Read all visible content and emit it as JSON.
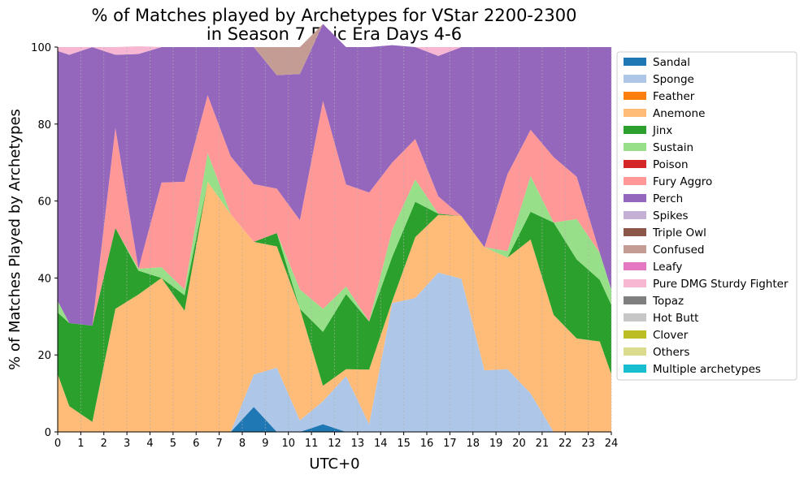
{
  "chart_data": {
    "type": "area",
    "title": "% of Matches played by Archetypes for VStar 2200-2300\nin Season 7 Epic Era Days 4-6",
    "xlabel": "UTC+0",
    "ylabel": "% of Matches Played by Archetypes",
    "xlim": [
      0,
      24
    ],
    "ylim": [
      0,
      100
    ],
    "x": [
      0,
      0.5,
      1.5,
      2.5,
      3.5,
      4.5,
      5.5,
      6.5,
      7.5,
      8.5,
      9.5,
      10.5,
      11.5,
      12.5,
      13.5,
      14.5,
      15.5,
      16.5,
      17.5,
      18.5,
      19.5,
      20.5,
      21.5,
      22.5,
      23.5,
      24
    ],
    "xticks": [
      "0",
      "1",
      "2",
      "3",
      "4",
      "5",
      "6",
      "7",
      "8",
      "9",
      "10",
      "11",
      "12",
      "13",
      "14",
      "15",
      "16",
      "17",
      "18",
      "19",
      "20",
      "21",
      "22",
      "23",
      "24"
    ],
    "yticks": [
      "0",
      "20",
      "40",
      "60",
      "80",
      "100"
    ],
    "stacked": true,
    "grid": "vertical dashed",
    "legend_position": "right",
    "series": [
      {
        "name": "Sandal",
        "color": "#1f77b4",
        "values": [
          0,
          0,
          0,
          0,
          0,
          0,
          0,
          0,
          0,
          6.5,
          0,
          0,
          2,
          0,
          0,
          0,
          0,
          0,
          0,
          0,
          0,
          0,
          0,
          0,
          0,
          0
        ]
      },
      {
        "name": "Sponge",
        "color": "#aec7e8",
        "values": [
          0,
          0,
          0,
          0,
          0,
          0,
          0,
          0,
          0,
          8.4,
          16.7,
          3,
          6,
          14.5,
          2,
          33.5,
          34.8,
          41.4,
          39.8,
          16,
          16.3,
          10,
          0,
          0,
          0,
          0
        ]
      },
      {
        "name": "Feather",
        "color": "#ff7f0e",
        "values": [
          0,
          0,
          0,
          0,
          0,
          0,
          0,
          0,
          0,
          0,
          0,
          0,
          0,
          0,
          0,
          0,
          0,
          0,
          0,
          0,
          0,
          0,
          0,
          0,
          0,
          0
        ]
      },
      {
        "name": "Anemone",
        "color": "#ffbb78",
        "values": [
          15,
          6.7,
          2.6,
          32,
          35.7,
          40,
          31.5,
          65,
          56.6,
          34.5,
          31.5,
          29,
          4,
          1.8,
          14.2,
          0.5,
          15.8,
          15,
          16.3,
          32,
          29,
          40,
          30.4,
          24.3,
          23.5,
          15
        ]
      },
      {
        "name": "Jinx",
        "color": "#2ca02c",
        "values": [
          16,
          21.6,
          25,
          21,
          6.2,
          0,
          4,
          0,
          0,
          0,
          3.5,
          0,
          14,
          19.5,
          12.5,
          11.5,
          9.2,
          0.3,
          0,
          0,
          0,
          7.2,
          24,
          20.5,
          16,
          18
        ]
      },
      {
        "name": "Sustain",
        "color": "#98df8a",
        "values": [
          3,
          0,
          0,
          0,
          0.5,
          2.8,
          1.5,
          7.5,
          0,
          0,
          0,
          5,
          6,
          2,
          0,
          7,
          5.8,
          0,
          0,
          0,
          1.7,
          9.3,
          0,
          10.5,
          7,
          4
        ]
      },
      {
        "name": "Poison",
        "color": "#d62728",
        "values": [
          0,
          0,
          0,
          0,
          0,
          0,
          0,
          0,
          0,
          0,
          0,
          0,
          0,
          0,
          0,
          0,
          0,
          0,
          0,
          0,
          0,
          0,
          0,
          0,
          0,
          0
        ]
      },
      {
        "name": "Fury Aggro",
        "color": "#ff9896",
        "values": [
          0,
          0,
          0,
          26,
          0,
          22,
          28,
          15,
          15,
          15,
          11.5,
          18,
          54,
          26.5,
          33.5,
          17.5,
          10.5,
          4.5,
          0,
          0,
          20,
          12,
          17,
          11,
          0,
          0
        ]
      },
      {
        "name": "Perch",
        "color": "#9467bd",
        "values": [
          65,
          69.7,
          72.4,
          19,
          55.8,
          35.2,
          35,
          12.5,
          28.4,
          35.6,
          29.5,
          38,
          20,
          35.7,
          37.8,
          30.5,
          23.9,
          36.5,
          43.9,
          52,
          33,
          21.5,
          28.6,
          33.7,
          53.5,
          63
        ]
      },
      {
        "name": "Spikes",
        "color": "#c5b0d5",
        "values": [
          0,
          0,
          0,
          0,
          0,
          0,
          0,
          0,
          0,
          0,
          0,
          0,
          0,
          0,
          0,
          0,
          0,
          0,
          0,
          0,
          0,
          0,
          0,
          0,
          0,
          0
        ]
      },
      {
        "name": "Triple Owl",
        "color": "#8c564b",
        "values": [
          0,
          0,
          0,
          0,
          0,
          0,
          0,
          0,
          0,
          0,
          0,
          0,
          0,
          0,
          0,
          0,
          0,
          0,
          0,
          0,
          0,
          0,
          0,
          0,
          0,
          0
        ]
      },
      {
        "name": "Confused",
        "color": "#c49c94",
        "values": [
          0,
          0,
          0,
          0,
          0,
          0,
          0,
          0,
          0,
          0,
          7.3,
          7,
          0,
          0,
          0,
          0,
          0,
          0,
          0,
          0,
          0,
          0,
          0,
          0,
          0,
          0
        ]
      },
      {
        "name": "Leafy",
        "color": "#e377c2",
        "values": [
          0,
          0,
          0,
          0,
          0,
          0,
          0,
          0,
          0,
          0,
          0,
          0,
          0,
          0,
          0,
          0,
          0,
          0,
          0,
          0,
          0,
          0,
          0,
          0,
          0,
          0
        ]
      },
      {
        "name": "Pure DMG Sturdy Fighter",
        "color": "#f7b6d2",
        "values": [
          1,
          2,
          0,
          2,
          2,
          0,
          0,
          0,
          0,
          0,
          0,
          0,
          0,
          0,
          0,
          0,
          0,
          2.3,
          0,
          0,
          0,
          0,
          0,
          0,
          0,
          0
        ]
      },
      {
        "name": "Topaz",
        "color": "#7f7f7f",
        "values": [
          0,
          0,
          0,
          0,
          0,
          0,
          0,
          0,
          0,
          0,
          0,
          0,
          0,
          0,
          0,
          0,
          0,
          0,
          0,
          0,
          0,
          0,
          0,
          0,
          0,
          0
        ]
      },
      {
        "name": "Hot Butt",
        "color": "#c7c7c7",
        "values": [
          0,
          0,
          0,
          0,
          0,
          0,
          0,
          0,
          0,
          0,
          0,
          0,
          0,
          0,
          0,
          0,
          0,
          0,
          0,
          0,
          0,
          0,
          0,
          0,
          0,
          0
        ]
      },
      {
        "name": "Clover",
        "color": "#bcbd22",
        "values": [
          0,
          0,
          0,
          0,
          0,
          0,
          0,
          0,
          0,
          0,
          0,
          0,
          0,
          0,
          0,
          0,
          0,
          0,
          0,
          0,
          0,
          0,
          0,
          0,
          0,
          0
        ]
      },
      {
        "name": "Others",
        "color": "#dbdb8d",
        "values": [
          0,
          0,
          0,
          0,
          0,
          0,
          0,
          0,
          0,
          0,
          0,
          0,
          0,
          0,
          0,
          0,
          0,
          0,
          0,
          0,
          0,
          0,
          0,
          0,
          0,
          0
        ]
      },
      {
        "name": "Multiple archetypes",
        "color": "#17becf",
        "values": [
          0,
          0,
          0,
          0,
          0,
          0,
          0,
          0,
          0,
          0,
          0,
          0,
          0,
          0,
          0,
          0,
          0,
          0,
          0,
          0,
          0,
          0,
          0,
          0,
          0,
          0
        ]
      }
    ]
  }
}
